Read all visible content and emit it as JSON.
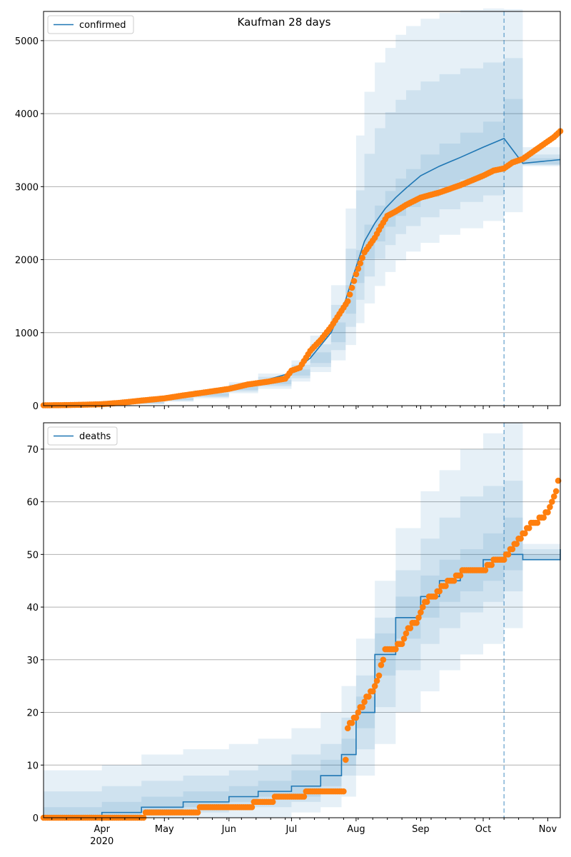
{
  "figure": {
    "title": "Kaufman 28 days"
  },
  "colors": {
    "model_line": "#1f77b4",
    "band": "#1f77b4",
    "observed": "#ff7f0e",
    "grid": "#b0b0b0",
    "forecast_marker": "#1f77b4"
  },
  "chart_data": [
    {
      "type": "line",
      "legend": "confirmed",
      "legend_position": "top-left",
      "grid": "horizontal",
      "ylim": [
        0,
        5400
      ],
      "yticks": [
        0,
        1000,
        2000,
        3000,
        4000,
        5000
      ],
      "x_range": [
        "2020-03-04",
        "2020-11-07"
      ],
      "forecast_start": "2020-10-11",
      "model": {
        "x": [
          "2020-03-04",
          "2020-03-20",
          "2020-04-01",
          "2020-04-15",
          "2020-05-01",
          "2020-05-15",
          "2020-06-01",
          "2020-06-15",
          "2020-07-01",
          "2020-07-10",
          "2020-07-20",
          "2020-07-27",
          "2020-08-01",
          "2020-08-05",
          "2020-08-10",
          "2020-08-15",
          "2020-08-20",
          "2020-08-25",
          "2020-09-01",
          "2020-09-10",
          "2020-09-20",
          "2020-10-01",
          "2020-10-11",
          "2020-10-20",
          "2020-11-07"
        ],
        "median": [
          5,
          8,
          15,
          40,
          90,
          150,
          240,
          320,
          450,
          650,
          1000,
          1450,
          1900,
          2250,
          2500,
          2700,
          2850,
          2980,
          3150,
          3280,
          3400,
          3540,
          3660,
          3320,
          3370
        ],
        "bands": [
          {
            "lower": [
              0,
              0,
              2,
              20,
              55,
              100,
              170,
              230,
              330,
              460,
              620,
              830,
              1130,
              1400,
              1640,
              1830,
              1990,
              2110,
              2230,
              2340,
              2430,
              2530,
              2650,
              3280,
              3280
            ],
            "upper": [
              15,
              20,
              30,
              65,
              130,
              210,
              320,
              440,
              620,
              960,
              1650,
              2700,
              3700,
              4300,
              4700,
              4900,
              5080,
              5200,
              5300,
              5380,
              5420,
              5440,
              5430,
              3540,
              3560
            ]
          },
          {
            "lower": [
              1,
              2,
              6,
              27,
              65,
              118,
              195,
              265,
              375,
              530,
              760,
              1080,
              1450,
              1770,
              2010,
              2200,
              2350,
              2460,
              2580,
              2690,
              2790,
              2880,
              2990,
              3295,
              3310
            ],
            "upper": [
              10,
              14,
              23,
              55,
              115,
              185,
              290,
              395,
              560,
              840,
              1380,
              2150,
              2950,
              3450,
              3800,
              4020,
              4190,
              4320,
              4440,
              4540,
              4620,
              4700,
              4760,
              3440,
              3480
            ]
          },
          {
            "lower": [
              3,
              5,
              10,
              33,
              77,
              133,
              215,
              292,
              412,
              585,
              870,
              1260,
              1680,
              2010,
              2250,
              2450,
              2600,
              2720,
              2860,
              2990,
              3100,
              3210,
              3320,
              3305,
              3340
            ],
            "upper": [
              7,
              11,
              19,
              47,
              102,
              167,
              265,
              350,
              495,
              730,
              1140,
              1650,
              2130,
              2480,
              2740,
              2940,
              3110,
              3240,
              3440,
              3590,
              3740,
              3890,
              4200,
              3390,
              3420
            ]
          }
        ]
      },
      "observed": {
        "x": [
          "2020-03-04",
          "2020-03-15",
          "2020-03-25",
          "2020-04-01",
          "2020-04-10",
          "2020-04-20",
          "2020-05-01",
          "2020-05-10",
          "2020-05-20",
          "2020-06-01",
          "2020-06-10",
          "2020-06-20",
          "2020-06-28",
          "2020-07-01",
          "2020-07-05",
          "2020-07-10",
          "2020-07-15",
          "2020-07-20",
          "2020-07-25",
          "2020-07-28",
          "2020-08-01",
          "2020-08-05",
          "2020-08-10",
          "2020-08-13",
          "2020-08-16",
          "2020-08-20",
          "2020-08-25",
          "2020-09-01",
          "2020-09-10",
          "2020-09-20",
          "2020-10-01",
          "2020-10-06",
          "2020-10-11",
          "2020-10-15",
          "2020-10-20",
          "2020-10-25",
          "2020-10-30",
          "2020-11-04",
          "2020-11-07"
        ],
        "y": [
          5,
          8,
          14,
          20,
          40,
          70,
          100,
          140,
          180,
          230,
          290,
          330,
          370,
          480,
          520,
          750,
          900,
          1080,
          1300,
          1430,
          1800,
          2100,
          2300,
          2460,
          2600,
          2660,
          2750,
          2850,
          2920,
          3020,
          3150,
          3220,
          3250,
          3330,
          3380,
          3480,
          3580,
          3680,
          3760
        ]
      }
    },
    {
      "type": "line",
      "legend": "deaths",
      "legend_position": "top-left",
      "grid": "horizontal",
      "ylim": [
        0,
        75
      ],
      "yticks": [
        0,
        10,
        20,
        30,
        40,
        50,
        60,
        70
      ],
      "x_range": [
        "2020-03-04",
        "2020-11-07"
      ],
      "x_month_labels": [
        "Apr",
        "May",
        "Jun",
        "Jul",
        "Aug",
        "Sep",
        "Oct",
        "Nov"
      ],
      "x_year_label": "2020",
      "forecast_start": "2020-10-11",
      "model": {
        "x": [
          "2020-03-04",
          "2020-04-01",
          "2020-04-20",
          "2020-05-10",
          "2020-06-01",
          "2020-06-15",
          "2020-07-01",
          "2020-07-15",
          "2020-07-25",
          "2020-08-01",
          "2020-08-10",
          "2020-08-20",
          "2020-09-01",
          "2020-09-10",
          "2020-09-20",
          "2020-10-01",
          "2020-10-11",
          "2020-10-20",
          "2020-11-07"
        ],
        "median": [
          0,
          1,
          2,
          3,
          4,
          5,
          6,
          8,
          12,
          20,
          31,
          38,
          42,
          45,
          47,
          49,
          50,
          49,
          51
        ],
        "bands": [
          {
            "lower": [
              0,
              0,
              0,
              0,
              0,
              0,
              1,
              2,
              4,
              8,
              14,
              20,
              24,
              28,
              31,
              33,
              36,
              49,
              49
            ],
            "upper": [
              9,
              10,
              12,
              13,
              14,
              15,
              17,
              20,
              25,
              34,
              45,
              55,
              62,
              66,
              70,
              73,
              75,
              52,
              57
            ]
          },
          {
            "lower": [
              0,
              0,
              1,
              1,
              2,
              2,
              3,
              5,
              8,
              13,
              21,
              28,
              33,
              36,
              39,
              41,
              43,
              49,
              50
            ],
            "upper": [
              5,
              6,
              7,
              8,
              9,
              10,
              12,
              14,
              19,
              27,
              38,
              47,
              53,
              57,
              61,
              63,
              64,
              51,
              54
            ]
          },
          {
            "lower": [
              0,
              0,
              1,
              2,
              3,
              4,
              4,
              6,
              10,
              17,
              27,
              34,
              38,
              41,
              43,
              45,
              47,
              49,
              50
            ],
            "upper": [
              2,
              3,
              4,
              5,
              6,
              7,
              9,
              11,
              15,
              23,
              35,
              42,
              46,
              49,
              51,
              54,
              57,
              50,
              52
            ]
          }
        ]
      },
      "observed": {
        "x": [
          "2020-03-04",
          "2020-04-15",
          "2020-04-28",
          "2020-05-15",
          "2020-05-20",
          "2020-06-05",
          "2020-06-10",
          "2020-06-15",
          "2020-06-30",
          "2020-07-05",
          "2020-07-10",
          "2020-07-20",
          "2020-07-26",
          "2020-07-28",
          "2020-08-01",
          "2020-08-05",
          "2020-08-10",
          "2020-08-12",
          "2020-08-15",
          "2020-08-18",
          "2020-08-23",
          "2020-08-26",
          "2020-08-30",
          "2020-09-03",
          "2020-09-07",
          "2020-09-12",
          "2020-09-16",
          "2020-09-22",
          "2020-09-28",
          "2020-10-01",
          "2020-10-04",
          "2020-10-07",
          "2020-10-11",
          "2020-10-15",
          "2020-10-20",
          "2020-10-25",
          "2020-10-30",
          "2020-11-02",
          "2020-11-04",
          "2020-11-05",
          "2020-11-06"
        ],
        "y": [
          0,
          0,
          1,
          1,
          2,
          2,
          2,
          3,
          4,
          4,
          5,
          5,
          5,
          17,
          19,
          22,
          25,
          27,
          32,
          32,
          33,
          36,
          37,
          41,
          42,
          44,
          45,
          47,
          47,
          47,
          48,
          49,
          49,
          51,
          54,
          56,
          57,
          59,
          61,
          62,
          64
        ]
      }
    }
  ]
}
